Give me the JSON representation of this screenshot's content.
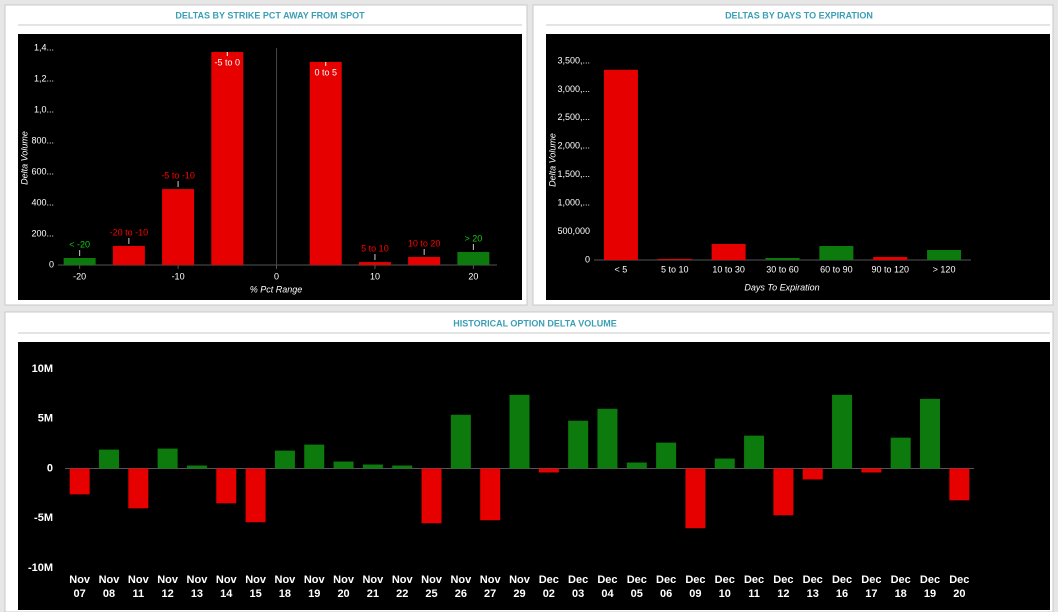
{
  "chart_data": [
    {
      "type": "bar",
      "title": "DELTAS BY STRIKE PCT AWAY FROM SPOT",
      "x_label": "% Pct Range",
      "y_label": "Delta Volume",
      "x": [
        -20,
        -15,
        -10,
        -5,
        5,
        10,
        15,
        20
      ],
      "labels": [
        "< -20",
        "-20 to -10",
        "-5 to -10",
        "-5 to 0",
        "0 to 5",
        "5 to 10",
        "10 to 20",
        "> 20"
      ],
      "values": [
        45,
        123,
        490,
        1374,
        1310,
        19,
        52,
        84
      ],
      "colors": [
        "#0d7a0d",
        "#e60000",
        "#e60000",
        "#e60000",
        "#e60000",
        "#e60000",
        "#e60000",
        "#0d7a0d"
      ],
      "xlim": [
        -22.2,
        22.4
      ],
      "ylim": [
        0,
        1400
      ],
      "xticks": [
        -20,
        -10,
        0,
        10,
        20
      ],
      "yticks": [
        0,
        {
          "value": 200,
          "label": "200..."
        },
        {
          "value": 400,
          "label": "400..."
        },
        {
          "value": 600,
          "label": "600..."
        },
        {
          "value": 800,
          "label": "800..."
        },
        {
          "value": 1000,
          "label": "1,0..."
        },
        {
          "value": 1200,
          "label": "1,2..."
        },
        {
          "value": 1400,
          "label": "1,4..."
        }
      ]
    },
    {
      "type": "bar",
      "title": "DELTAS BY DAYS TO EXPIRATION",
      "x_label": "Days To Expiration",
      "y_label": "Delta Volume",
      "categories": [
        "< 5",
        "5 to 10",
        "10 to 30",
        "30 to 60",
        "60 to 90",
        "90 to 120",
        "> 120"
      ],
      "values": [
        3345000,
        18000,
        282000,
        35000,
        246000,
        53000,
        176000
      ],
      "colors": [
        "#e60000",
        "#e60000",
        "#e60000",
        "#0d7a0d",
        "#0d7a0d",
        "#e60000",
        "#0d7a0d"
      ],
      "ylim": [
        0,
        3500000
      ],
      "yticks": [
        0,
        {
          "value": 500000,
          "label": "500,000"
        },
        {
          "value": 1000000,
          "label": "1,000,..."
        },
        {
          "value": 1500000,
          "label": "1,500,..."
        },
        {
          "value": 2000000,
          "label": "2,000,..."
        },
        {
          "value": 2500000,
          "label": "2,500,..."
        },
        {
          "value": 3000000,
          "label": "3,000,..."
        },
        {
          "value": 3500000,
          "label": "3,500,..."
        }
      ]
    },
    {
      "type": "bar",
      "title": "HISTORICAL OPTION DELTA VOLUME",
      "categories": [
        [
          "Nov",
          "07"
        ],
        [
          "Nov",
          "08"
        ],
        [
          "Nov",
          "11"
        ],
        [
          "Nov",
          "12"
        ],
        [
          "Nov",
          "13"
        ],
        [
          "Nov",
          "14"
        ],
        [
          "Nov",
          "15"
        ],
        [
          "Nov",
          "18"
        ],
        [
          "Nov",
          "19"
        ],
        [
          "Nov",
          "20"
        ],
        [
          "Nov",
          "21"
        ],
        [
          "Nov",
          "22"
        ],
        [
          "Nov",
          "25"
        ],
        [
          "Nov",
          "26"
        ],
        [
          "Nov",
          "27"
        ],
        [
          "Nov",
          "29"
        ],
        [
          "Dec",
          "02"
        ],
        [
          "Dec",
          "03"
        ],
        [
          "Dec",
          "04"
        ],
        [
          "Dec",
          "05"
        ],
        [
          "Dec",
          "06"
        ],
        [
          "Dec",
          "09"
        ],
        [
          "Dec",
          "10"
        ],
        [
          "Dec",
          "11"
        ],
        [
          "Dec",
          "12"
        ],
        [
          "Dec",
          "13"
        ],
        [
          "Dec",
          "16"
        ],
        [
          "Dec",
          "17"
        ],
        [
          "Dec",
          "18"
        ],
        [
          "Dec",
          "19"
        ],
        [
          "Dec",
          "20"
        ]
      ],
      "values": [
        -2600000,
        1900000,
        -4000000,
        2000000,
        300000,
        -3500000,
        -5400000,
        1800000,
        2400000,
        700000,
        400000,
        300000,
        -5500000,
        5400000,
        -5200000,
        7400000,
        -400000,
        4800000,
        6000000,
        600000,
        2600000,
        -6000000,
        1000000,
        3300000,
        -4700000,
        -1100000,
        7400000,
        -400000,
        3100000,
        7000000,
        -3200000
      ],
      "positive_color": "#0d7a0d",
      "negative_color": "#e60000",
      "ylim": [
        -10000000,
        10000000
      ],
      "yticks": [
        {
          "value": -10000000,
          "label": "-10M"
        },
        {
          "value": -5000000,
          "label": "-5M"
        },
        0,
        {
          "value": 5000000,
          "label": "5M"
        },
        {
          "value": 10000000,
          "label": "10M"
        }
      ]
    }
  ]
}
